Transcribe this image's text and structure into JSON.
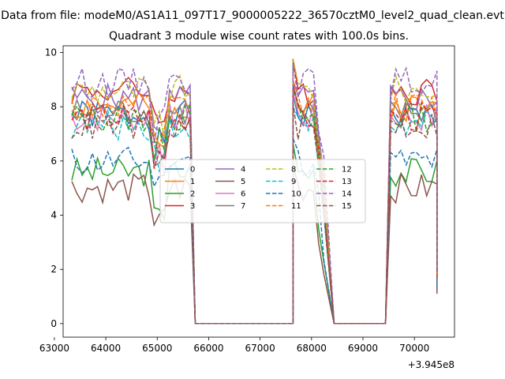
{
  "figure": {
    "suptitle": "Data from file: modeM0/AS1A11_097T17_9000005222_36570cztM0_level2_quad_clean.evt"
  },
  "chart_data": {
    "type": "line",
    "title": "Quadrant 3 module wise count rates with 100.0s bins.",
    "xlabel": "",
    "ylabel": "",
    "x_offset_label": "+3.945e8",
    "xlim": [
      63170,
      70780
    ],
    "ylim": [
      -0.5,
      10.25
    ],
    "x_ticks": [
      63000,
      64000,
      65000,
      66000,
      67000,
      68000,
      69000,
      70000
    ],
    "x_tick_labels": [
      "63000",
      "64000",
      "65000",
      "66000",
      "67000",
      "68000",
      "69000",
      "70000"
    ],
    "y_ticks": [
      0,
      2,
      4,
      6,
      8,
      10
    ],
    "y_tick_labels": [
      "0",
      "2",
      "4",
      "6",
      "8",
      "10"
    ],
    "legend_position": "center",
    "legend_columns": 4,
    "bins": {
      "bin_size": 100,
      "segments": [
        {
          "start": 63339,
          "count": 24
        },
        {
          "start": 67639,
          "count": 7
        },
        {
          "start": 69539,
          "count": 10
        }
      ],
      "zero_gaps": [
        [
          65639,
          67639
        ],
        [
          68339,
          69439
        ]
      ],
      "segment_end_values": [
        [
          65739,
          0
        ],
        [
          68439,
          0
        ],
        [
          70439,
          1.5
        ]
      ]
    },
    "series": [
      {
        "name": "0",
        "color": "#1f77b4",
        "dash": "solid",
        "level": 7.7,
        "seed": 1
      },
      {
        "name": "1",
        "color": "#ff7f0e",
        "dash": "solid",
        "level": 8.0,
        "seed": 2
      },
      {
        "name": "2",
        "color": "#2ca02c",
        "dash": "solid",
        "level": 5.6,
        "seed": 3
      },
      {
        "name": "3",
        "color": "#d62728",
        "dash": "solid",
        "level": 8.6,
        "seed": 4
      },
      {
        "name": "4",
        "color": "#9467bd",
        "dash": "solid",
        "level": 8.3,
        "seed": 5
      },
      {
        "name": "5",
        "color": "#8c564b",
        "dash": "solid",
        "level": 5.0,
        "seed": 6
      },
      {
        "name": "6",
        "color": "#e377c2",
        "dash": "solid",
        "level": 7.6,
        "seed": 7
      },
      {
        "name": "7",
        "color": "#7f7f7f",
        "dash": "solid",
        "level": 7.8,
        "seed": 8
      },
      {
        "name": "8",
        "color": "#bcbd22",
        "dash": "dashed",
        "level": 8.6,
        "seed": 9
      },
      {
        "name": "9",
        "color": "#17becf",
        "dash": "dashed",
        "level": 7.3,
        "seed": 10
      },
      {
        "name": "10",
        "color": "#1f77b4",
        "dash": "dashed",
        "level": 6.0,
        "seed": 11
      },
      {
        "name": "11",
        "color": "#ff7f0e",
        "dash": "dashed",
        "level": 8.0,
        "seed": 12
      },
      {
        "name": "12",
        "color": "#2ca02c",
        "dash": "dashed",
        "level": 7.6,
        "seed": 13
      },
      {
        "name": "13",
        "color": "#d62728",
        "dash": "dashed",
        "level": 7.6,
        "seed": 14
      },
      {
        "name": "14",
        "color": "#9467bd",
        "dash": "dashed",
        "level": 8.9,
        "seed": 15
      },
      {
        "name": "15",
        "color": "#8c564b",
        "dash": "dashed",
        "level": 7.3,
        "seed": 16
      }
    ]
  }
}
